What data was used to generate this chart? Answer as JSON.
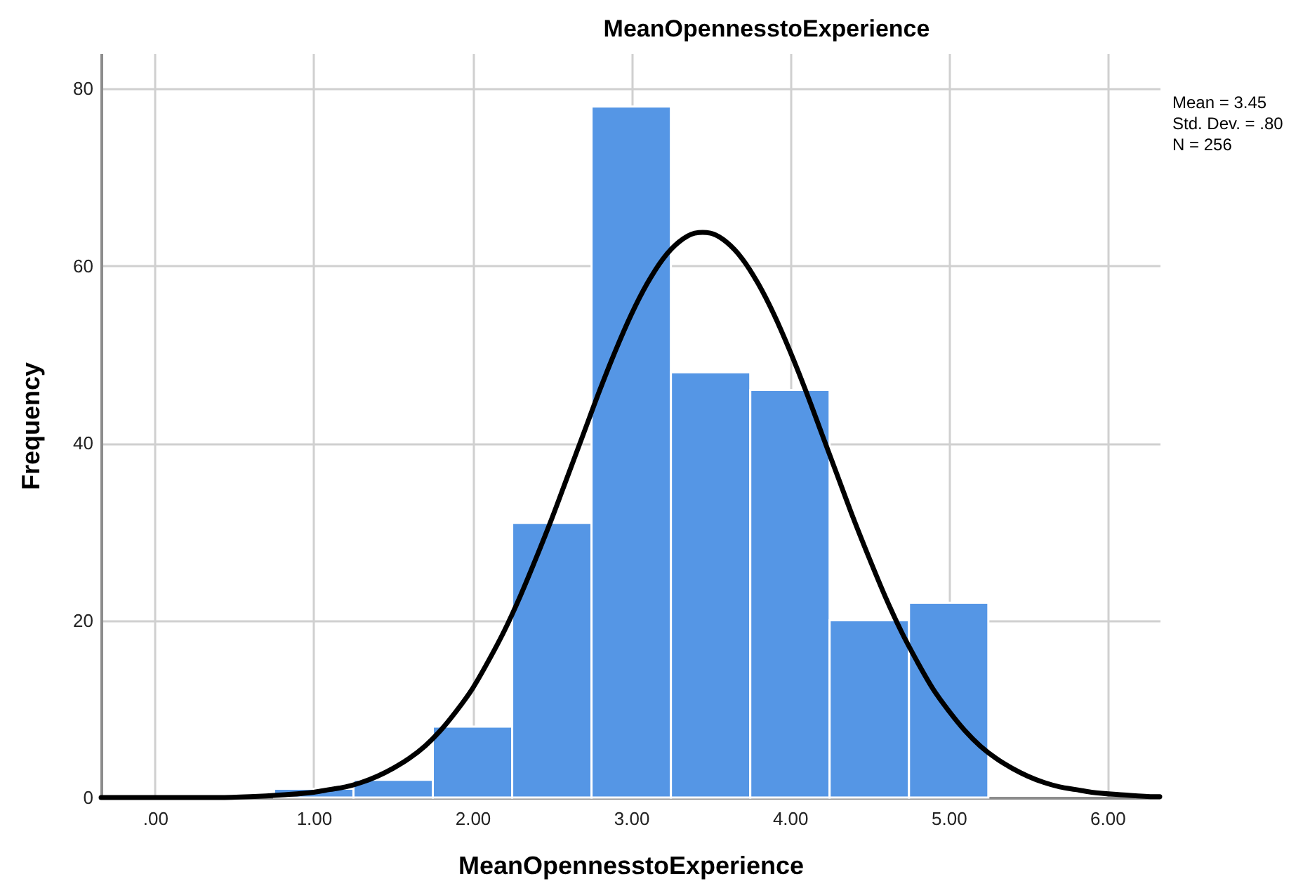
{
  "chart_data": {
    "type": "histogram",
    "title": "MeanOpennesstoExperience",
    "xlabel": "MeanOpennesstoExperience",
    "ylabel": "Frequency",
    "bins": [
      0.75,
      1.25,
      1.75,
      2.25,
      2.75,
      3.25,
      3.75,
      4.25,
      4.75,
      5.25
    ],
    "values": [
      1,
      2,
      8,
      31,
      78,
      48,
      46,
      20,
      22
    ],
    "color": "#5596e5",
    "series": [
      {
        "type": "line",
        "color": "#000000",
        "x": [
          -0.34,
          0.0,
          0.4,
          0.6,
          0.8,
          1.0,
          1.1,
          1.2,
          1.3,
          1.4,
          1.5,
          1.6,
          1.7,
          1.8,
          1.9,
          2.0,
          2.1,
          2.2,
          2.3,
          2.4,
          2.5,
          2.6,
          2.7,
          2.8,
          2.9,
          3.0,
          3.1,
          3.2,
          3.3,
          3.4,
          3.45,
          3.5,
          3.6,
          3.7,
          3.8,
          3.9,
          4.0,
          4.1,
          4.2,
          4.3,
          4.4,
          4.5,
          4.6,
          4.7,
          4.8,
          4.9,
          5.0,
          5.1,
          5.2,
          5.3,
          5.4,
          5.5,
          5.6,
          5.7,
          5.8,
          5.9,
          6.1,
          6.3,
          6.33
        ],
        "values": [
          0.0,
          0.0,
          0.0,
          0.1,
          0.3,
          0.6,
          0.9,
          1.2,
          1.7,
          2.4,
          3.3,
          4.4,
          5.8,
          7.6,
          9.8,
          12.3,
          15.4,
          18.8,
          22.7,
          27.0,
          31.5,
          36.3,
          41.1,
          45.9,
          50.4,
          54.5,
          58.0,
          60.8,
          62.7,
          63.7,
          63.8,
          63.7,
          62.7,
          60.8,
          58.0,
          54.5,
          50.4,
          45.9,
          41.1,
          36.3,
          31.5,
          27.0,
          22.7,
          18.8,
          15.4,
          12.3,
          9.8,
          7.6,
          5.8,
          4.4,
          3.3,
          2.4,
          1.7,
          1.2,
          0.9,
          0.6,
          0.3,
          0.1,
          0.1
        ]
      }
    ],
    "xlim": [
      -0.34,
      6.33
    ],
    "ylim": [
      0,
      84
    ],
    "xticks": [
      {
        "value": 0,
        "label": ".00"
      },
      {
        "value": 1,
        "label": "1.00"
      },
      {
        "value": 2,
        "label": "2.00"
      },
      {
        "value": 3,
        "label": "3.00"
      },
      {
        "value": 4,
        "label": "4.00"
      },
      {
        "value": 5,
        "label": "5.00"
      },
      {
        "value": 6,
        "label": "6.00"
      }
    ],
    "yticks": [
      0,
      20,
      40,
      60,
      80
    ],
    "grid": true,
    "annotations": [
      "Mean = 3.45",
      "Std. Dev. = .80",
      "N = 256"
    ]
  }
}
